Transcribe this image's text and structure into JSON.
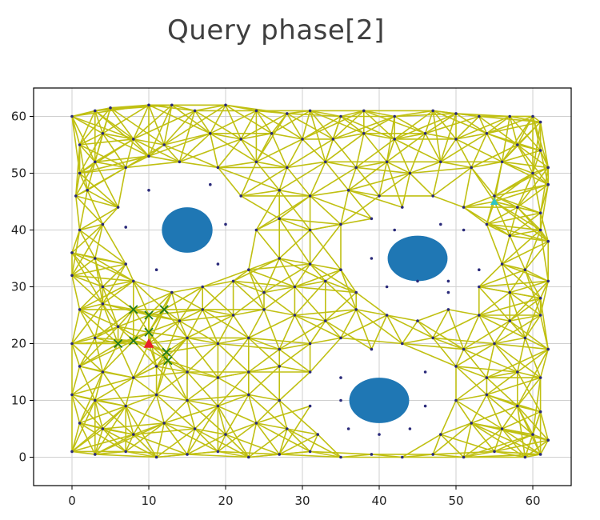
{
  "page": {
    "title": "Query phase[2]"
  },
  "chart_data": {
    "type": "scatter",
    "title": "Query phase[2]",
    "xlabel": "",
    "ylabel": "",
    "xlim": [
      -5,
      65
    ],
    "ylim": [
      -5,
      65
    ],
    "xticks": [
      "0",
      "10",
      "20",
      "30",
      "40",
      "50",
      "60"
    ],
    "yticks": [
      "0",
      "10",
      "20",
      "30",
      "40",
      "50",
      "60"
    ],
    "grid": true,
    "colors": {
      "roadmap_edges": "#c0c012",
      "roadmap_nodes": "#2a2a7a",
      "obstacles": "#1f77b4",
      "goal_marker": "#2ec4c4",
      "start_marker": "#e8202a",
      "path_nodes": "#1e7a1e",
      "axes": "#000000",
      "grid": "#cfcfcf"
    },
    "obstacles": [
      {
        "shape": "ellipse",
        "center": [
          15,
          40
        ],
        "rx": 3.3,
        "ry": 4.0
      },
      {
        "shape": "ellipse",
        "center": [
          45,
          35
        ],
        "rx": 3.9,
        "ry": 4.0
      },
      {
        "shape": "ellipse",
        "center": [
          40,
          10
        ],
        "rx": 3.9,
        "ry": 4.0
      }
    ],
    "start_marker": {
      "x": 10,
      "y": 20,
      "symbol": "triangle"
    },
    "goal_marker": {
      "x": 55,
      "y": 45,
      "symbol": "triangle"
    },
    "path_nodes": [
      [
        6,
        20
      ],
      [
        8,
        20.5
      ],
      [
        8,
        26
      ],
      [
        10,
        25
      ],
      [
        12,
        26
      ],
      [
        10,
        22
      ],
      [
        12.3,
        18.5
      ],
      [
        12.5,
        17
      ]
    ],
    "roadmap_nodes": [
      [
        0,
        60
      ],
      [
        3,
        61
      ],
      [
        5,
        61.5
      ],
      [
        10,
        62
      ],
      [
        13,
        62
      ],
      [
        16,
        61
      ],
      [
        20,
        62
      ],
      [
        24,
        61
      ],
      [
        28,
        60.5
      ],
      [
        31,
        61
      ],
      [
        35,
        60
      ],
      [
        38,
        61
      ],
      [
        42,
        60
      ],
      [
        47,
        61
      ],
      [
        50,
        60.5
      ],
      [
        53,
        60
      ],
      [
        57,
        60
      ],
      [
        60,
        60
      ],
      [
        61,
        59
      ],
      [
        1,
        55
      ],
      [
        4,
        57
      ],
      [
        8,
        56
      ],
      [
        12,
        55
      ],
      [
        18,
        57
      ],
      [
        22,
        56
      ],
      [
        26,
        57
      ],
      [
        30,
        56
      ],
      [
        34,
        56
      ],
      [
        38,
        57
      ],
      [
        42,
        56
      ],
      [
        46,
        57
      ],
      [
        50,
        56
      ],
      [
        54,
        57
      ],
      [
        58,
        55
      ],
      [
        61,
        54
      ],
      [
        62,
        51
      ],
      [
        1,
        50
      ],
      [
        3,
        52
      ],
      [
        7,
        51
      ],
      [
        10,
        53
      ],
      [
        14,
        52
      ],
      [
        19,
        51
      ],
      [
        24,
        52
      ],
      [
        28,
        51
      ],
      [
        33,
        52
      ],
      [
        37,
        51
      ],
      [
        41,
        52
      ],
      [
        44,
        50
      ],
      [
        48,
        52
      ],
      [
        52,
        51
      ],
      [
        56,
        52
      ],
      [
        60,
        50
      ],
      [
        62,
        48
      ],
      [
        0.5,
        46
      ],
      [
        2,
        47
      ],
      [
        6,
        44
      ],
      [
        10,
        47
      ],
      [
        18,
        48
      ],
      [
        22,
        46
      ],
      [
        27,
        47
      ],
      [
        31,
        46
      ],
      [
        36,
        47
      ],
      [
        40,
        46
      ],
      [
        43,
        44
      ],
      [
        47,
        46
      ],
      [
        51,
        44
      ],
      [
        55,
        46
      ],
      [
        58,
        44
      ],
      [
        61,
        43
      ],
      [
        1,
        40
      ],
      [
        4,
        41
      ],
      [
        7,
        40.5
      ],
      [
        20,
        41
      ],
      [
        24,
        40
      ],
      [
        27,
        42
      ],
      [
        31,
        40
      ],
      [
        35,
        41
      ],
      [
        39,
        42
      ],
      [
        42,
        40
      ],
      [
        48,
        41
      ],
      [
        51,
        40
      ],
      [
        54,
        41
      ],
      [
        57,
        39
      ],
      [
        61,
        40
      ],
      [
        62,
        38
      ],
      [
        0,
        36
      ],
      [
        3,
        35
      ],
      [
        7,
        34
      ],
      [
        11,
        33
      ],
      [
        19,
        34
      ],
      [
        23,
        33
      ],
      [
        27,
        35
      ],
      [
        31,
        34
      ],
      [
        35,
        33
      ],
      [
        39,
        35
      ],
      [
        49,
        31
      ],
      [
        53,
        33
      ],
      [
        56,
        34
      ],
      [
        59,
        33
      ],
      [
        62,
        31
      ],
      [
        0,
        32
      ],
      [
        4,
        30
      ],
      [
        8,
        31
      ],
      [
        13,
        29
      ],
      [
        17,
        30
      ],
      [
        21,
        31
      ],
      [
        25,
        29
      ],
      [
        29,
        30
      ],
      [
        33,
        31
      ],
      [
        37,
        29
      ],
      [
        41,
        30
      ],
      [
        45,
        31
      ],
      [
        49,
        29
      ],
      [
        53,
        30
      ],
      [
        57,
        29
      ],
      [
        61,
        28
      ],
      [
        1,
        26
      ],
      [
        4,
        27
      ],
      [
        6,
        23
      ],
      [
        14,
        24
      ],
      [
        17,
        26
      ],
      [
        21,
        25
      ],
      [
        25,
        26
      ],
      [
        29,
        25
      ],
      [
        33,
        24
      ],
      [
        37,
        26
      ],
      [
        41,
        25
      ],
      [
        45,
        24
      ],
      [
        49,
        26
      ],
      [
        53,
        25
      ],
      [
        57,
        24
      ],
      [
        61,
        25
      ],
      [
        0,
        20
      ],
      [
        3,
        21
      ],
      [
        15,
        21
      ],
      [
        19,
        20
      ],
      [
        23,
        21
      ],
      [
        27,
        19
      ],
      [
        31,
        20
      ],
      [
        35,
        21
      ],
      [
        39,
        19
      ],
      [
        43,
        20
      ],
      [
        47,
        21
      ],
      [
        51,
        19
      ],
      [
        55,
        20
      ],
      [
        59,
        21
      ],
      [
        62,
        19
      ],
      [
        1,
        16
      ],
      [
        4,
        15
      ],
      [
        8,
        14
      ],
      [
        11,
        16
      ],
      [
        15,
        15
      ],
      [
        19,
        14
      ],
      [
        23,
        15
      ],
      [
        27,
        16
      ],
      [
        31,
        15
      ],
      [
        35,
        14
      ],
      [
        46,
        15
      ],
      [
        50,
        16
      ],
      [
        54,
        14
      ],
      [
        58,
        15
      ],
      [
        61,
        14
      ],
      [
        0,
        11
      ],
      [
        3,
        10
      ],
      [
        7,
        9
      ],
      [
        11,
        11
      ],
      [
        15,
        10
      ],
      [
        19,
        9
      ],
      [
        23,
        11
      ],
      [
        27,
        10
      ],
      [
        31,
        9
      ],
      [
        35,
        10
      ],
      [
        46,
        9
      ],
      [
        50,
        10
      ],
      [
        54,
        11
      ],
      [
        58,
        9
      ],
      [
        61,
        8
      ],
      [
        1,
        6
      ],
      [
        4,
        5
      ],
      [
        8,
        4
      ],
      [
        12,
        6
      ],
      [
        16,
        5
      ],
      [
        20,
        4
      ],
      [
        24,
        6
      ],
      [
        28,
        5
      ],
      [
        32,
        4
      ],
      [
        36,
        5
      ],
      [
        40,
        4
      ],
      [
        44,
        5
      ],
      [
        48,
        4
      ],
      [
        52,
        6
      ],
      [
        56,
        5
      ],
      [
        60,
        4
      ],
      [
        62,
        3
      ],
      [
        0,
        1
      ],
      [
        3,
        0.5
      ],
      [
        7,
        1
      ],
      [
        11,
        0
      ],
      [
        15,
        0.5
      ],
      [
        19,
        1
      ],
      [
        23,
        0
      ],
      [
        27,
        0.5
      ],
      [
        31,
        1
      ],
      [
        35,
        0
      ],
      [
        39,
        0.5
      ],
      [
        43,
        0
      ],
      [
        47,
        0.5
      ],
      [
        51,
        0
      ],
      [
        55,
        1
      ],
      [
        59,
        0
      ],
      [
        61,
        0.5
      ]
    ]
  }
}
